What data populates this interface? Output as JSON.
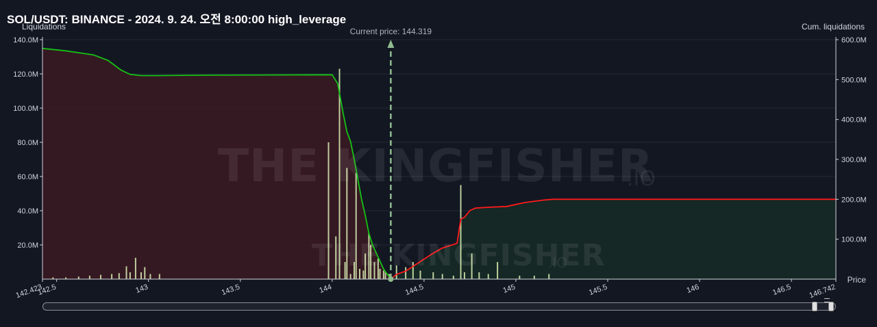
{
  "title": "SOL/USDT: BINANCE - 2024. 9. 24. 오전 8:00:00 high_leverage",
  "watermark": {
    "brand": "THE KINGFISHER",
    "suffix": ".IO"
  },
  "current_price_label": "Current price: 144.319",
  "colors": {
    "background": "#131722",
    "short_curve": "#ff1a1a",
    "long_curve": "#15c315",
    "long_area": "#3a1a22",
    "short_area": "#162a26",
    "bars": "#d9efb4",
    "current_price_line": "#8fbc8f"
  },
  "chart_data": {
    "type": "bar",
    "title": "SOL/USDT: BINANCE - 2024. 9. 24. 오전 8:00:00 high_leverage",
    "xlabel": "Price",
    "ylabel": "Liquidations",
    "y2label": "Cum. liquidations",
    "xlim": [
      142.423,
      146.742
    ],
    "ylim": [
      0,
      140000000
    ],
    "y2lim": [
      0,
      600000000
    ],
    "current_price": 144.319,
    "x_ticks": [
      "142.423",
      "142.5",
      "143",
      "143.5",
      "144",
      "144.5",
      "145",
      "145.5",
      "146",
      "146.5",
      "146.742"
    ],
    "x_tick_values": [
      142.423,
      142.5,
      143,
      143.5,
      144,
      144.5,
      145,
      145.5,
      146,
      146.5,
      146.742
    ],
    "y_ticks": [
      "20.0M",
      "40.0M",
      "60.0M",
      "80.0M",
      "100.0M",
      "120.0M",
      "140.0M"
    ],
    "y_tick_values": [
      20000000,
      40000000,
      60000000,
      80000000,
      100000000,
      120000000,
      140000000
    ],
    "y2_ticks": [
      "100.0M",
      "200.0M",
      "300.0M",
      "400.0M",
      "500.0M",
      "600.0M"
    ],
    "y2_tick_values": [
      100000000,
      200000000,
      300000000,
      400000000,
      500000000,
      600000000
    ],
    "bars": {
      "x": [
        142.48,
        142.55,
        142.62,
        142.68,
        142.74,
        142.8,
        142.84,
        142.88,
        142.9,
        142.93,
        142.96,
        142.98,
        143.01,
        143.06,
        143.98,
        144.02,
        144.04,
        144.07,
        144.08,
        144.1,
        144.12,
        144.13,
        144.15,
        144.17,
        144.18,
        144.2,
        144.21,
        144.23,
        144.25,
        144.26,
        144.28,
        144.29,
        144.31,
        144.35,
        144.4,
        144.44,
        144.48,
        144.55,
        144.6,
        144.66,
        144.7,
        144.72,
        144.76,
        144.8,
        144.85,
        144.9,
        145.02,
        145.1,
        145.18
      ],
      "values": [
        1000000,
        1000000,
        1500000,
        2000000,
        2500000,
        3000000,
        3500000,
        7500000,
        4000000,
        12500000,
        4000000,
        7000000,
        3000000,
        3000000,
        80000000,
        25000000,
        123000000,
        10000000,
        65000000,
        3000000,
        10000000,
        62000000,
        6000000,
        5000000,
        15000000,
        27000000,
        20000000,
        10000000,
        12000000,
        6000000,
        5000000,
        4000000,
        3000000,
        8000000,
        7000000,
        10000000,
        5000000,
        4000000,
        3000000,
        2000000,
        55000000,
        4000000,
        15000000,
        4000000,
        3000000,
        10000000,
        2000000,
        2000000,
        3000000
      ]
    },
    "series": [
      {
        "name": "long_cum",
        "axis": "y2",
        "x": [
          142.423,
          142.55,
          142.7,
          142.78,
          142.85,
          142.9,
          142.96,
          143.05,
          143.3,
          144.0,
          144.03,
          144.06,
          144.08,
          144.1,
          144.12,
          144.14,
          144.16,
          144.18,
          144.2,
          144.22,
          144.25,
          144.28,
          144.319
        ],
        "y": [
          578000000,
          572000000,
          562000000,
          548000000,
          524000000,
          513000000,
          510000000,
          510000000,
          511000000,
          512000000,
          490000000,
          415000000,
          370000000,
          345000000,
          300000000,
          250000000,
          200000000,
          160000000,
          115000000,
          85000000,
          55000000,
          25000000,
          0
        ]
      },
      {
        "name": "short_cum",
        "axis": "y2",
        "x": [
          144.319,
          144.35,
          144.4,
          144.45,
          144.5,
          144.55,
          144.6,
          144.65,
          144.68,
          144.7,
          144.72,
          144.75,
          144.78,
          144.85,
          144.95,
          145.05,
          145.15,
          145.2,
          145.3,
          146.742
        ],
        "y": [
          0,
          12000000,
          20000000,
          35000000,
          50000000,
          65000000,
          78000000,
          85000000,
          90000000,
          150000000,
          155000000,
          172000000,
          178000000,
          180000000,
          182000000,
          192000000,
          198000000,
          200000000,
          200000000,
          200000000
        ]
      }
    ]
  }
}
